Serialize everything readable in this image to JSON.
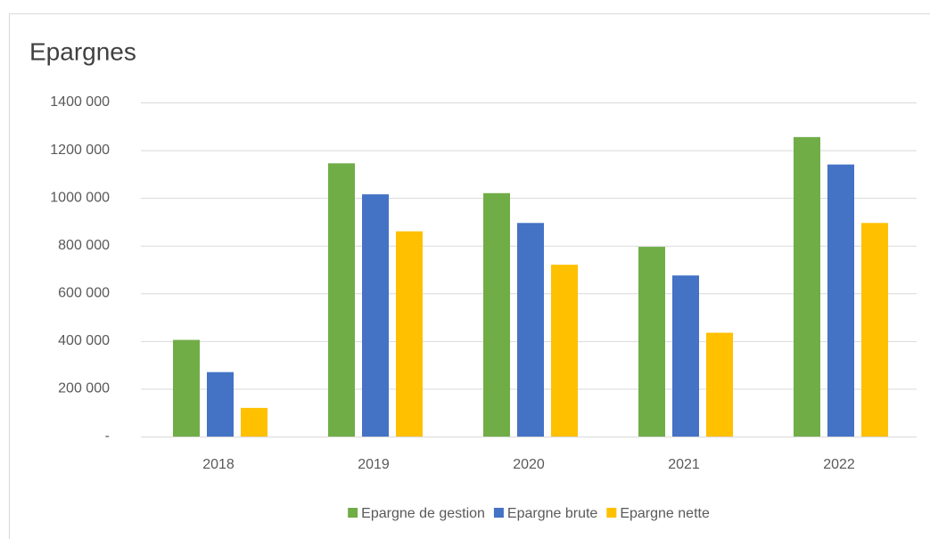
{
  "chart_data": {
    "type": "bar",
    "title": "Epargnes",
    "categories": [
      "2018",
      "2019",
      "2020",
      "2021",
      "2022"
    ],
    "series": [
      {
        "name": "Epargne de gestion",
        "color": "#70ad47",
        "values": [
          405000,
          1145000,
          1020000,
          795000,
          1255000
        ]
      },
      {
        "name": "Epargne brute",
        "color": "#4472c4",
        "values": [
          270000,
          1015000,
          895000,
          675000,
          1140000
        ]
      },
      {
        "name": "Epargne nette",
        "color": "#ffc000",
        "values": [
          120000,
          860000,
          720000,
          435000,
          895000
        ]
      }
    ],
    "ylim": [
      0,
      1400000
    ],
    "yticks": [
      {
        "value": 0,
        "label": "-"
      },
      {
        "value": 200000,
        "label": "200 000"
      },
      {
        "value": 400000,
        "label": "400 000"
      },
      {
        "value": 600000,
        "label": "600 000"
      },
      {
        "value": 800000,
        "label": "800 000"
      },
      {
        "value": 1000000,
        "label": "1000 000"
      },
      {
        "value": 1200000,
        "label": "1200 000"
      },
      {
        "value": 1400000,
        "label": "1400 000"
      }
    ],
    "grid": true,
    "legend": "bottom"
  }
}
